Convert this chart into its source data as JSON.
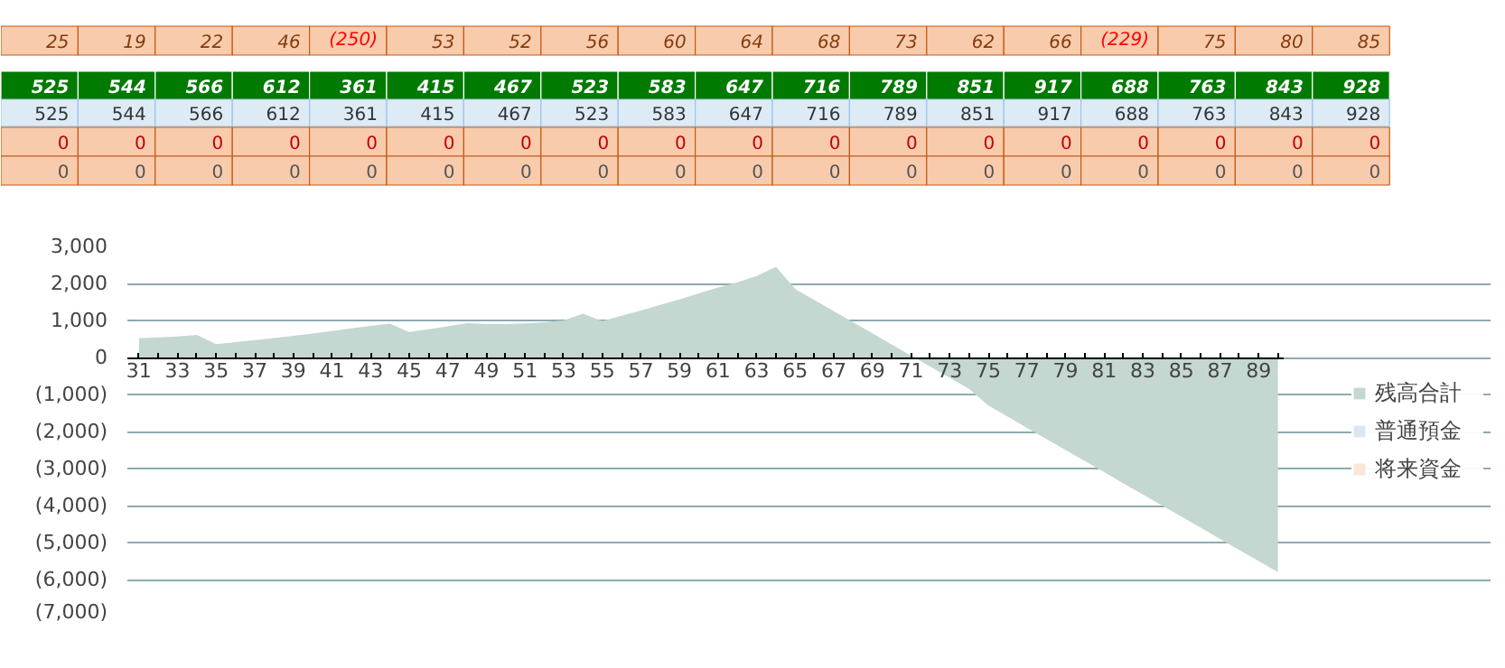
{
  "chart_data": [
    {
      "type": "other",
      "annotations": [
        "25",
        "19",
        "22",
        "46",
        "(250)",
        "53",
        "52",
        "56",
        "60",
        "64",
        "68",
        "73",
        "62",
        "66",
        "(229)",
        "75",
        "80",
        "85",
        "525",
        "544",
        "566",
        "612",
        "361",
        "415",
        "467",
        "523",
        "583",
        "647",
        "716",
        "789",
        "851",
        "917",
        "688",
        "763",
        "843",
        "928",
        "525",
        "544",
        "566",
        "612",
        "361",
        "415",
        "467",
        "523",
        "583",
        "647",
        "716",
        "789",
        "851",
        "917",
        "688",
        "763",
        "843",
        "928",
        "0",
        "0",
        "0",
        "0",
        "0",
        "0",
        "0",
        "0",
        "0",
        "0",
        "0",
        "0",
        "0",
        "0",
        "0",
        "0",
        "0",
        "0",
        "0",
        "0",
        "0",
        "0",
        "0",
        "0",
        "0",
        "0",
        "0",
        "0",
        "0",
        "0",
        "0",
        "0",
        "0",
        "0",
        "0",
        "0"
      ]
    },
    {
      "type": "area",
      "categories": [
        "31",
        null,
        "33",
        null,
        "35",
        null,
        "37",
        null,
        "39",
        null,
        "41",
        null,
        "43",
        null,
        "45",
        null,
        "47",
        null,
        "49",
        null,
        "51",
        null,
        "53",
        null,
        "55",
        null,
        "57",
        null,
        "59",
        null,
        "61",
        null,
        "63",
        null,
        "65",
        null,
        "67",
        null,
        "69",
        null,
        "71",
        null,
        "73",
        null,
        "75",
        null,
        "77",
        null,
        "79",
        null,
        "81",
        null,
        "83",
        null,
        "85",
        null,
        "87",
        null,
        "89",
        null
      ],
      "series": [
        {
          "name": "残高合計",
          "color": "#c4d7d1",
          "values": [
            525,
            544,
            566,
            612,
            361,
            415,
            467,
            523,
            583,
            647,
            716,
            789,
            851,
            917,
            688,
            763,
            843,
            928,
            900,
            900,
            920,
            950,
            1000,
            1180,
            980,
            1130,
            1270,
            1420,
            1570,
            1730,
            1890,
            2030,
            2200,
            2450,
            1850,
            1550,
            1250,
            950,
            650,
            350,
            50,
            -250,
            -550,
            -850,
            -1300,
            -1600,
            -1900,
            -2200,
            -2500,
            -2800,
            -3100,
            -3400,
            -3700,
            -4000,
            -4300,
            -4600,
            -4900,
            -5200,
            -5500,
            -5800
          ]
        },
        {
          "name": "普通預金",
          "color": "#dce6f0",
          "values": [
            null,
            null,
            null,
            null,
            null,
            null,
            null,
            null,
            null,
            null,
            null,
            null,
            null,
            null,
            null,
            null,
            null,
            null,
            null,
            null,
            null,
            null,
            null,
            null,
            null,
            null,
            null,
            null,
            null,
            null,
            null,
            null,
            null,
            null,
            null,
            null,
            null,
            null,
            null,
            null,
            null,
            null,
            null,
            null,
            null,
            null,
            null,
            null,
            null,
            null,
            null,
            null,
            null,
            null,
            null,
            null,
            null,
            null,
            null,
            null
          ]
        },
        {
          "name": "将来資金",
          "color": "#fbe5d6",
          "values": [
            null,
            null,
            null,
            null,
            null,
            null,
            null,
            null,
            null,
            null,
            null,
            null,
            null,
            null,
            null,
            null,
            null,
            null,
            null,
            null,
            null,
            null,
            null,
            null,
            null,
            null,
            null,
            null,
            null,
            null,
            null,
            null,
            null,
            null,
            null,
            null,
            null,
            null,
            null,
            null,
            null,
            null,
            null,
            null,
            null,
            null,
            null,
            null,
            null,
            null,
            null,
            null,
            null,
            null,
            null,
            null,
            null,
            null,
            null,
            null
          ]
        }
      ],
      "ylim": [
        -7000,
        3000
      ],
      "yticks": [
        {
          "value": -7000,
          "label": "(7,000)"
        },
        {
          "value": -6000,
          "label": "(6,000)"
        },
        {
          "value": -5000,
          "label": "(5,000)"
        },
        {
          "value": -4000,
          "label": "(4,000)"
        },
        {
          "value": -3000,
          "label": "(3,000)"
        },
        {
          "value": -2000,
          "label": "(2,000)"
        },
        {
          "value": -1000,
          "label": "(1,000)"
        },
        0,
        {
          "value": 1000,
          "label": "1,000"
        },
        {
          "value": 2000,
          "label": "2,000"
        },
        {
          "value": 3000,
          "label": "3,000"
        }
      ],
      "grid": "y",
      "legend": "right"
    }
  ]
}
